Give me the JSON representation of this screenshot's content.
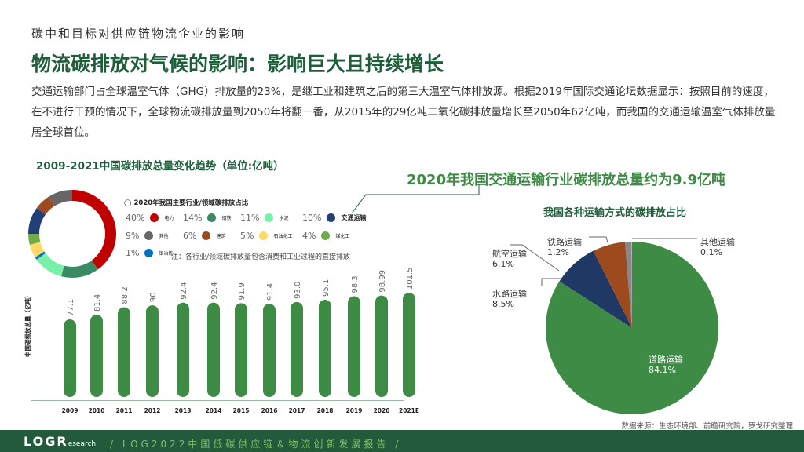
{
  "header": {
    "kicker": "碳中和目标对供应链物流企业的影响",
    "title": "物流碳排放对气候的影响：影响巨大且持续增长",
    "intro": "交通运输部门占全球温室气体（GHG）排放量的23%，是继工业和建筑之后的第三大温室气体排放源。根据2019年国际交通论坛数据显示：按照目前的速度，在不进行干预的情况下，全球物流碳排放量到2050年将翻一番，从2015年的29亿吨二氧化碳排放量增长至2050年62亿吨，而我国的交通运输温室气体排放量居全球首位。"
  },
  "highlight": "2020年我国交通运输行业碳排放总量约为9.9亿吨",
  "source": "数据来源：生态环境部、前瞻研究院，罗戈研究整理",
  "footer": {
    "logo": "LOGR",
    "logo_sub": "esearch",
    "text": "/  LOG2022中国低碳供应链＆物流创新发展报告  /"
  },
  "chart_data": [
    {
      "type": "bar",
      "title": "2009-2021中国碳排放总量变化趋势（单位:亿吨）",
      "ylabel": "中国碳排放总量（亿吨）",
      "categories": [
        "2009",
        "2010",
        "2011",
        "2012",
        "2013",
        "2014",
        "2015",
        "2016",
        "2017",
        "2018",
        "2019",
        "2020",
        "2021E"
      ],
      "values": [
        77.1,
        81.4,
        88.2,
        90,
        92.4,
        92.4,
        91.9,
        91.4,
        93.0,
        95.1,
        98.3,
        98.99,
        101.5
      ],
      "value_labels": [
        "77.1",
        "81.4",
        "88.2",
        "90",
        "92.4",
        "92.4",
        "91.9",
        "91.4",
        "93.0",
        "95.1",
        "98.3",
        "98.99",
        "101.5"
      ],
      "color": "#3d8b45"
    },
    {
      "type": "pie",
      "variant": "donut",
      "title": "2020年我国主要行业/领域碳排放占比",
      "note": "注：各行业/领域碳排放量包含消费和工业过程的直接排放",
      "slices": [
        {
          "label": "电力",
          "value": 40,
          "pct": "40%",
          "color": "#c00000"
        },
        {
          "label": "钢铁",
          "value": 14,
          "pct": "14%",
          "color": "#3a8a63"
        },
        {
          "label": "水泥",
          "value": 11,
          "pct": "11%",
          "color": "#78f0a8"
        },
        {
          "label": "铝冶炼",
          "value": 1,
          "pct": "1%",
          "color": "#0070c0"
        },
        {
          "label": "石油化工",
          "value": 5,
          "pct": "5%",
          "color": "#ffd966"
        },
        {
          "label": "煤化工",
          "value": 4,
          "pct": "4%",
          "color": "#70ad47"
        },
        {
          "label": "交通运输",
          "value": 10,
          "pct": "10%",
          "color": "#223f77"
        },
        {
          "label": "建筑",
          "value": 6,
          "pct": "6%",
          "color": "#9e4a1f"
        },
        {
          "label": "其他",
          "value": 9,
          "pct": "9%",
          "color": "#666666"
        }
      ]
    },
    {
      "type": "pie",
      "title": "我国各种运输方式的碳排放占比",
      "slices": [
        {
          "label": "道路运输",
          "value": 84.1,
          "pct": "84.1%",
          "color": "#3d8b45"
        },
        {
          "label": "水路运输",
          "value": 8.5,
          "pct": "8.5%",
          "color": "#203864"
        },
        {
          "label": "航空运输",
          "value": 6.1,
          "pct": "6.1%",
          "color": "#9e4a1f"
        },
        {
          "label": "铁路运输",
          "value": 1.2,
          "pct": "1.2%",
          "color": "#888888"
        },
        {
          "label": "其他运输",
          "value": 0.1,
          "pct": "0.1%",
          "color": "#bbbbbb"
        }
      ]
    }
  ]
}
